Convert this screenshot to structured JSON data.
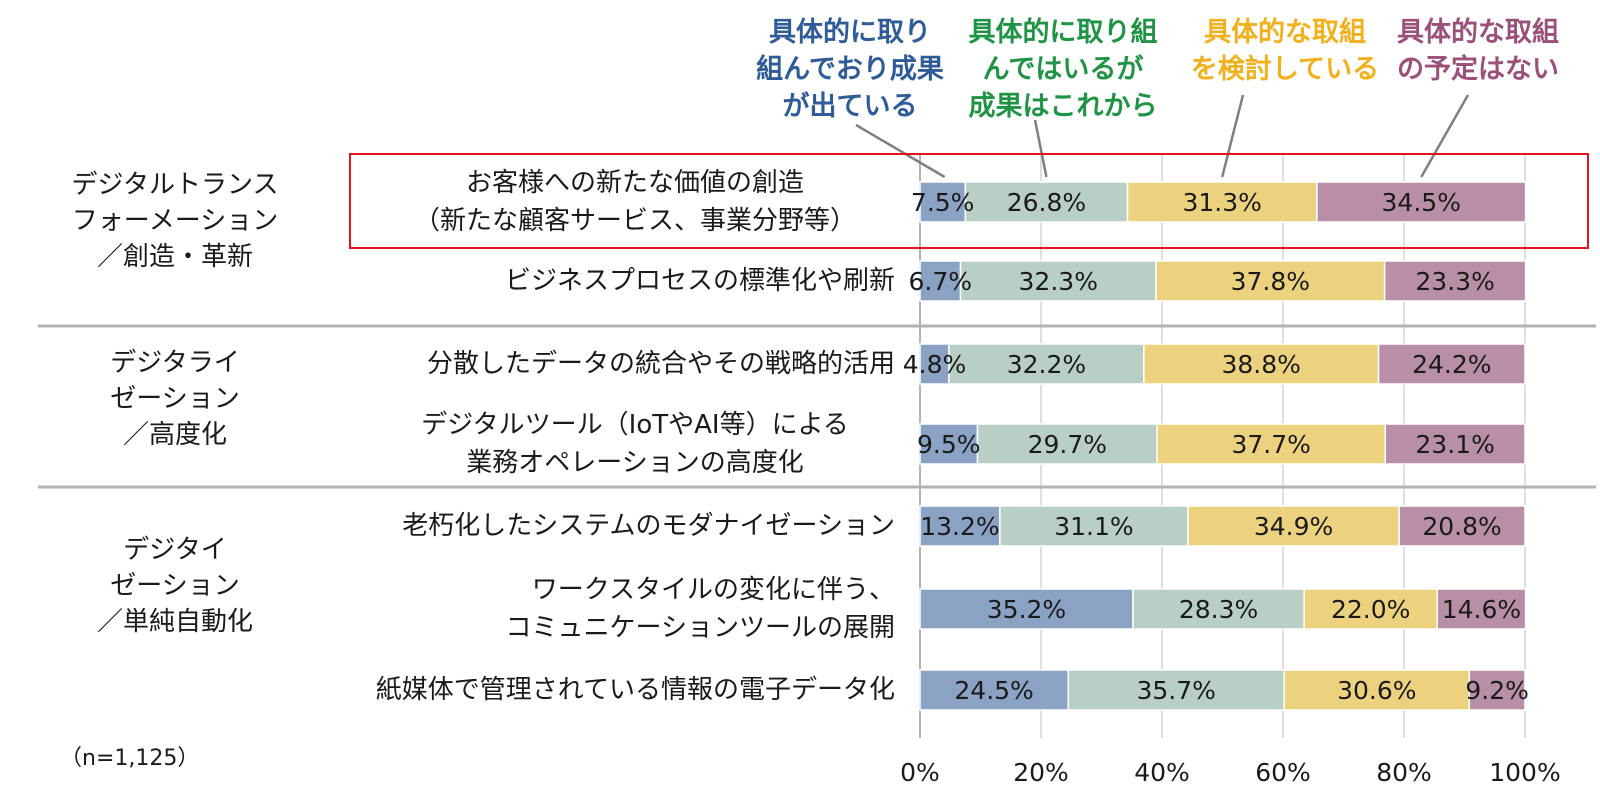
{
  "chart_data": {
    "type": "bar",
    "orientation": "horizontal",
    "stacked": true,
    "percent_stacked": true,
    "series": [
      {
        "name": "具体的に取り組んでおり成果が出ている",
        "legend_lines": [
          "具体的に取り",
          "組んでおり成果",
          "が出ている"
        ],
        "color": "#8aa2c4",
        "legend_color": "#2f5c99",
        "values": [
          7.5,
          6.7,
          4.8,
          9.5,
          13.2,
          35.2,
          24.5
        ]
      },
      {
        "name": "具体的に取り組んではいるが成果はこれから",
        "legend_lines": [
          "具体的に取り組",
          "んではいるが",
          "成果はこれから"
        ],
        "color": "#b9cfc6",
        "legend_color": "#1f9444",
        "values": [
          26.8,
          32.3,
          32.2,
          29.7,
          31.1,
          28.3,
          35.7
        ]
      },
      {
        "name": "具体的な取組を検討している",
        "legend_lines": [
          "具体的な取組",
          "を検討している"
        ],
        "color": "#ecd27f",
        "legend_color": "#f2b01c",
        "values": [
          31.3,
          37.8,
          38.8,
          37.7,
          34.9,
          22.0,
          30.6
        ]
      },
      {
        "name": "具体的な取組の予定はない",
        "legend_lines": [
          "具体的な取組",
          "の予定はない"
        ],
        "color": "#b88fa6",
        "legend_color": "#9b5079",
        "values": [
          34.5,
          23.3,
          24.2,
          23.1,
          20.8,
          14.6,
          9.2
        ]
      }
    ],
    "categories": [
      [
        "お客様への新たな価値の創造",
        "（新たな顧客サービス、事業分野等）"
      ],
      [
        "ビジネスプロセスの標準化や刷新"
      ],
      [
        "分散したデータの統合やその戦略的活用"
      ],
      [
        "デジタルツール（IoTやAI等）による",
        "業務オペレーションの高度化"
      ],
      [
        "老朽化したシステムのモダナイゼーション"
      ],
      [
        "ワークスタイルの変化に伴う、",
        "コミュニケーションツールの展開"
      ],
      [
        "紙媒体で管理されている情報の電子データ化"
      ]
    ],
    "value_labels": [
      [
        "7.5%",
        "26.8%",
        "31.3%",
        "34.5%"
      ],
      [
        "6.7%",
        "32.3%",
        "37.8%",
        "23.3%"
      ],
      [
        "4.8%",
        "32.2%",
        "38.8%",
        "24.2%"
      ],
      [
        "9.5%",
        "29.7%",
        "37.7%",
        "23.1%"
      ],
      [
        "13.2%",
        "31.1%",
        "34.9%",
        "20.8%"
      ],
      [
        "35.2%",
        "28.3%",
        "22.0%",
        "14.6%"
      ],
      [
        "24.5%",
        "35.7%",
        "30.6%",
        "9.2%"
      ]
    ],
    "groups": [
      {
        "lines": [
          "デジタルトランス",
          "フォーメーション",
          "／創造・革新"
        ],
        "rows": [
          0,
          1
        ]
      },
      {
        "lines": [
          "デジタライ",
          "ゼーション",
          "／高度化"
        ],
        "rows": [
          2,
          3
        ]
      },
      {
        "lines": [
          "デジタイ",
          "ゼーション",
          "／単純自動化"
        ],
        "rows": [
          4,
          5,
          6
        ]
      }
    ],
    "x_ticks": [
      "0%",
      "20%",
      "40%",
      "60%",
      "80%",
      "100%"
    ],
    "xlim": [
      0,
      100
    ],
    "grid": true,
    "highlighted_row": 0,
    "highlight_color": "#e0161d",
    "note": "（n=1,125）"
  }
}
